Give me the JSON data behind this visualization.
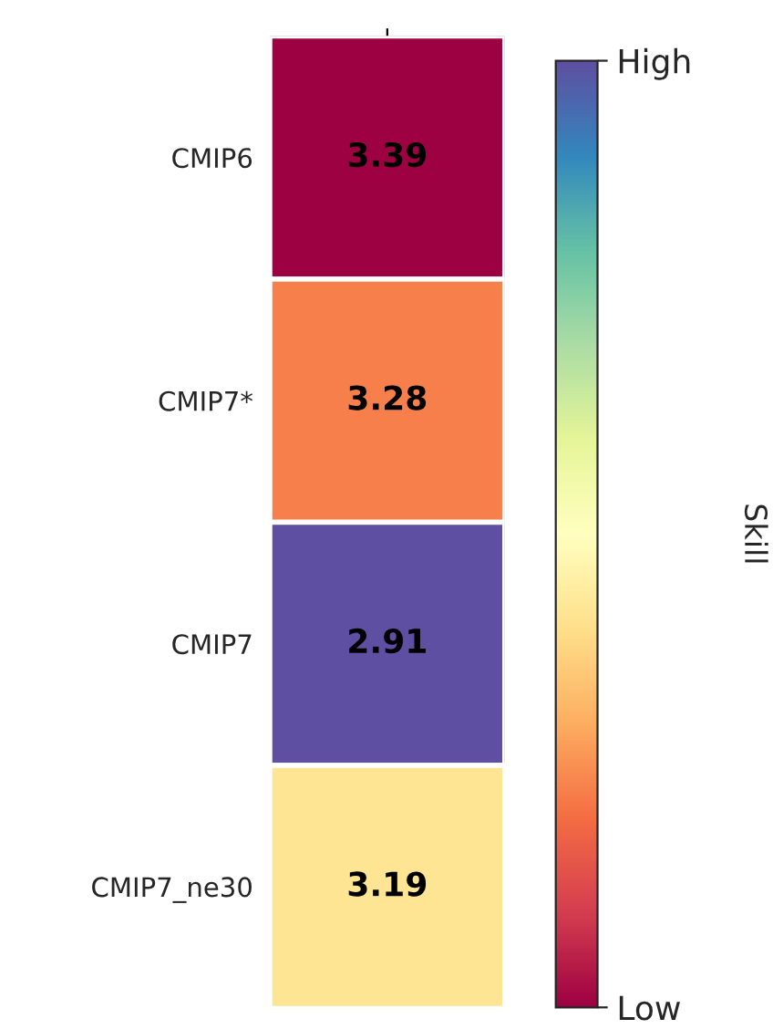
{
  "chart_data": {
    "type": "heatmap",
    "clabel": "Skill",
    "categories": [
      null
    ],
    "y_categories": [
      "CMIP6",
      "CMIP7*",
      "CMIP7",
      "CMIP7_ne30"
    ],
    "cells": [
      [
        3.39
      ],
      [
        3.28
      ],
      [
        2.91
      ],
      [
        3.19
      ]
    ],
    "clim": [
      3.39,
      2.91
    ],
    "data_labels": true,
    "cticks": [
      {
        "value": 3.39,
        "label": "Low"
      },
      {
        "value": 2.91,
        "label": "High"
      }
    ]
  }
}
